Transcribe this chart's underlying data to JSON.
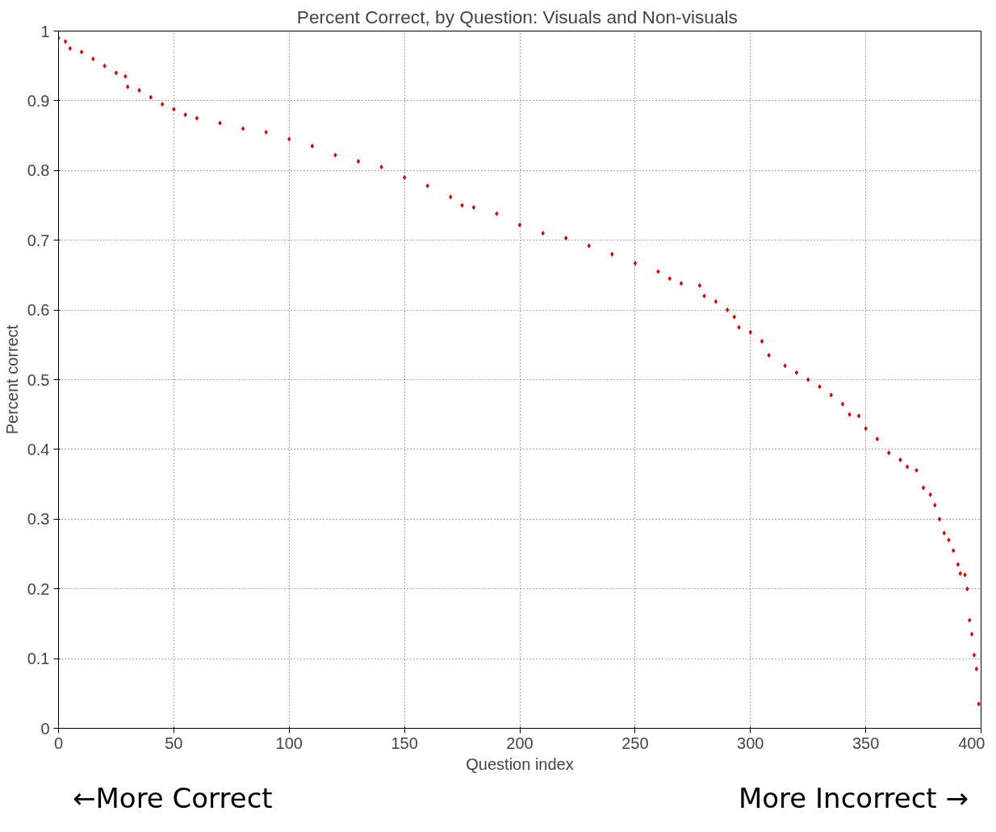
{
  "chart_data": {
    "type": "scatter",
    "title": "Percent Correct, by Question:  Visuals and Non-visuals",
    "xlabel": "Question index",
    "ylabel": "Percent correct",
    "x": [
      0,
      3,
      5,
      10,
      15,
      20,
      25,
      29,
      30,
      35,
      40,
      45,
      50,
      55,
      60,
      70,
      80,
      90,
      100,
      110,
      120,
      130,
      140,
      150,
      160,
      170,
      175,
      180,
      190,
      200,
      210,
      220,
      230,
      240,
      250,
      260,
      265,
      270,
      278,
      280,
      285,
      290,
      293,
      295,
      300,
      305,
      308,
      315,
      320,
      325,
      330,
      335,
      340,
      343,
      347,
      350,
      355,
      360,
      365,
      368,
      372,
      375,
      378,
      380,
      382,
      384,
      386,
      388,
      390,
      391,
      393,
      394,
      395,
      396,
      397,
      398,
      399
    ],
    "series": [
      {
        "color": "#d40000",
        "values": [
          0.99,
          0.985,
          0.975,
          0.97,
          0.96,
          0.95,
          0.94,
          0.935,
          0.92,
          0.915,
          0.905,
          0.895,
          0.888,
          0.88,
          0.875,
          0.868,
          0.86,
          0.855,
          0.845,
          0.835,
          0.822,
          0.813,
          0.805,
          0.79,
          0.778,
          0.762,
          0.75,
          0.747,
          0.738,
          0.722,
          0.71,
          0.703,
          0.692,
          0.68,
          0.667,
          0.655,
          0.645,
          0.638,
          0.635,
          0.62,
          0.612,
          0.6,
          0.59,
          0.575,
          0.568,
          0.555,
          0.535,
          0.52,
          0.51,
          0.5,
          0.49,
          0.478,
          0.465,
          0.45,
          0.448,
          0.43,
          0.415,
          0.395,
          0.385,
          0.375,
          0.37,
          0.345,
          0.335,
          0.32,
          0.3,
          0.28,
          0.27,
          0.255,
          0.235,
          0.222,
          0.22,
          0.2,
          0.155,
          0.135,
          0.105,
          0.085,
          0.035
        ]
      }
    ],
    "xlim": [
      0,
      400
    ],
    "xticks": [
      0,
      50,
      100,
      150,
      200,
      250,
      300,
      350,
      400
    ],
    "ylim": [
      0,
      1
    ],
    "yticks": [
      0,
      0.1,
      0.2,
      0.3,
      0.4,
      0.5,
      0.6,
      0.7,
      0.8,
      0.9,
      1
    ],
    "grid": true,
    "marker": "diamond",
    "annotations": [
      "←More Correct",
      "More Incorrect →"
    ]
  }
}
